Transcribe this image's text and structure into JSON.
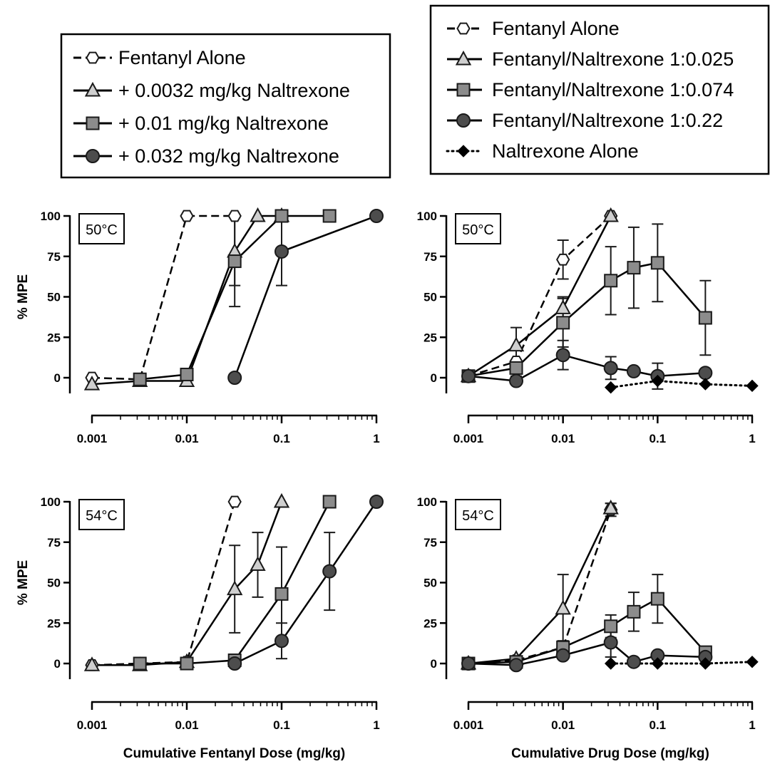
{
  "legends": [
    {
      "entries": [
        {
          "label": "Fentanyl Alone",
          "marker": "hexagon",
          "line": "dashed",
          "fill": "#ffffff"
        },
        {
          "label": "+ 0.0032 mg/kg Naltrexone",
          "marker": "triangle",
          "line": "solid",
          "fill": "#cfcfcf"
        },
        {
          "label": "+ 0.01 mg/kg Naltrexone",
          "marker": "square",
          "line": "solid",
          "fill": "#8c8c8c"
        },
        {
          "label": "+ 0.032 mg/kg Naltrexone",
          "marker": "circle",
          "line": "solid",
          "fill": "#4d4d4d"
        }
      ]
    },
    {
      "entries": [
        {
          "label": "Fentanyl Alone",
          "marker": "hexagon",
          "line": "dashed",
          "fill": "#ffffff"
        },
        {
          "label": "Fentanyl/Naltrexone 1:0.025",
          "marker": "triangle",
          "line": "solid",
          "fill": "#cfcfcf"
        },
        {
          "label": "Fentanyl/Naltrexone 1:0.074",
          "marker": "square",
          "line": "solid",
          "fill": "#8c8c8c"
        },
        {
          "label": "Fentanyl/Naltrexone 1:0.22",
          "marker": "circle",
          "line": "solid",
          "fill": "#4d4d4d"
        },
        {
          "label": "Naltrexone Alone",
          "marker": "diamond",
          "line": "dotted",
          "fill": "#000000"
        }
      ]
    }
  ],
  "chart_data": [
    {
      "type": "line",
      "panel": "top-left",
      "label": "50°C",
      "ylabel": "% MPE",
      "xlabel": "",
      "xscale": "log",
      "xlim": [
        0.001,
        1
      ],
      "ylim": [
        -10,
        100
      ],
      "yticks": [
        "0",
        "25",
        "50",
        "75",
        "100"
      ],
      "xticks": [
        "0.001",
        "0.01",
        "0.1",
        "1"
      ],
      "series": [
        {
          "name": "Fentanyl Alone",
          "marker": "hexagon",
          "line": "dashed",
          "fill": "#ffffff",
          "x": [
            0.001,
            0.0032,
            0.01,
            0.032
          ],
          "y": [
            0,
            -1,
            100,
            100
          ],
          "err": [
            0,
            0,
            0,
            0
          ]
        },
        {
          "name": "+ 0.0032 mg/kg Naltrexone",
          "marker": "triangle",
          "line": "solid",
          "fill": "#cfcfcf",
          "x": [
            0.001,
            0.0032,
            0.01,
            0.032,
            0.056,
            0.1
          ],
          "y": [
            -4,
            -2,
            -2,
            78,
            100,
            100
          ],
          "err": [
            0,
            0,
            0,
            21,
            0,
            0
          ]
        },
        {
          "name": "+ 0.01 mg/kg Naltrexone",
          "marker": "square",
          "line": "solid",
          "fill": "#8c8c8c",
          "x": [
            0.0032,
            0.01,
            0.032,
            0.1,
            0.32
          ],
          "y": [
            -1,
            2,
            72,
            100,
            100
          ],
          "err": [
            0,
            0,
            28,
            0,
            0
          ]
        },
        {
          "name": "+ 0.032 mg/kg Naltrexone",
          "marker": "circle",
          "line": "solid",
          "fill": "#4d4d4d",
          "x": [
            0.032,
            0.1,
            1
          ],
          "y": [
            0,
            78,
            100
          ],
          "err": [
            0,
            21,
            0
          ]
        }
      ]
    },
    {
      "type": "line",
      "panel": "top-right",
      "label": "50°C",
      "ylabel": "",
      "xlabel": "",
      "xscale": "log",
      "xlim": [
        0.001,
        1
      ],
      "ylim": [
        -10,
        100
      ],
      "yticks": [
        "0",
        "25",
        "50",
        "75",
        "100"
      ],
      "xticks": [
        "0.001",
        "0.01",
        "0.1",
        "1"
      ],
      "series": [
        {
          "name": "Fentanyl Alone",
          "marker": "hexagon",
          "line": "dashed",
          "fill": "#ffffff",
          "x": [
            0.001,
            0.0032,
            0.01,
            0.032
          ],
          "y": [
            1,
            10,
            73,
            100
          ],
          "err": [
            0,
            0,
            12,
            0
          ]
        },
        {
          "name": "Fentanyl/Naltrexone 1:0.025",
          "marker": "triangle",
          "line": "solid",
          "fill": "#cfcfcf",
          "x": [
            0.001,
            0.0032,
            0.01,
            0.032
          ],
          "y": [
            1,
            20,
            43,
            100
          ],
          "err": [
            0,
            11,
            7,
            0
          ]
        },
        {
          "name": "Fentanyl/Naltrexone 1:0.074",
          "marker": "square",
          "line": "solid",
          "fill": "#8c8c8c",
          "x": [
            0.001,
            0.0032,
            0.01,
            0.032,
            0.056,
            0.1,
            0.32
          ],
          "y": [
            1,
            6,
            34,
            60,
            68,
            71,
            37
          ],
          "err": [
            0,
            5,
            15,
            21,
            25,
            24,
            23
          ]
        },
        {
          "name": "Fentanyl/Naltrexone 1:0.22",
          "marker": "circle",
          "line": "solid",
          "fill": "#4d4d4d",
          "x": [
            0.001,
            0.0032,
            0.01,
            0.032,
            0.056,
            0.1,
            0.32
          ],
          "y": [
            1,
            -2,
            14,
            6,
            4,
            1,
            3
          ],
          "err": [
            0,
            0,
            9,
            7,
            0,
            8,
            0
          ]
        },
        {
          "name": "Naltrexone Alone",
          "marker": "diamond",
          "line": "dotted",
          "fill": "#000000",
          "x": [
            0.032,
            0.1,
            0.32,
            1
          ],
          "y": [
            -6,
            -2,
            -4,
            -5
          ],
          "err": [
            0,
            0,
            0,
            0
          ]
        }
      ]
    },
    {
      "type": "line",
      "panel": "bottom-left",
      "label": "54°C",
      "ylabel": "% MPE",
      "xlabel": "Cumulative Fentanyl Dose (mg/kg)",
      "xscale": "log",
      "xlim": [
        0.001,
        1
      ],
      "ylim": [
        -10,
        100
      ],
      "yticks": [
        "0",
        "25",
        "50",
        "75",
        "100"
      ],
      "xticks": [
        "0.001",
        "0.01",
        "0.1",
        "1"
      ],
      "series": [
        {
          "name": "Fentanyl Alone",
          "marker": "hexagon",
          "line": "dashed",
          "fill": "#ffffff",
          "x": [
            0.001,
            0.0032,
            0.01,
            0.032
          ],
          "y": [
            -1,
            0,
            1,
            100
          ],
          "err": [
            0,
            0,
            0,
            0
          ]
        },
        {
          "name": "+ 0.0032 mg/kg Naltrexone",
          "marker": "triangle",
          "line": "solid",
          "fill": "#cfcfcf",
          "x": [
            0.001,
            0.0032,
            0.01,
            0.032,
            0.056,
            0.1
          ],
          "y": [
            -1,
            -1,
            1,
            46,
            61,
            100
          ],
          "err": [
            0,
            0,
            0,
            27,
            20,
            0
          ]
        },
        {
          "name": "+ 0.01 mg/kg Naltrexone",
          "marker": "square",
          "line": "solid",
          "fill": "#8c8c8c",
          "x": [
            0.0032,
            0.01,
            0.032,
            0.1,
            0.32
          ],
          "y": [
            0,
            0,
            2,
            43,
            100
          ],
          "err": [
            0,
            0,
            0,
            29,
            0
          ]
        },
        {
          "name": "+ 0.032 mg/kg Naltrexone",
          "marker": "circle",
          "line": "solid",
          "fill": "#4d4d4d",
          "x": [
            0.032,
            0.1,
            0.32,
            1
          ],
          "y": [
            0,
            14,
            57,
            100
          ],
          "err": [
            0,
            11,
            24,
            0
          ]
        }
      ]
    },
    {
      "type": "line",
      "panel": "bottom-right",
      "label": "54°C",
      "ylabel": "",
      "xlabel": "Cumulative Drug Dose (mg/kg)",
      "xscale": "log",
      "xlim": [
        0.001,
        1
      ],
      "ylim": [
        -10,
        100
      ],
      "yticks": [
        "0",
        "25",
        "50",
        "75",
        "100"
      ],
      "xticks": [
        "0.001",
        "0.01",
        "0.1",
        "1"
      ],
      "series": [
        {
          "name": "Fentanyl Alone",
          "marker": "hexagon",
          "line": "dashed",
          "fill": "#ffffff",
          "x": [
            0.001,
            0.0032,
            0.01,
            0.032
          ],
          "y": [
            0,
            2,
            10,
            95
          ],
          "err": [
            0,
            0,
            4,
            4
          ]
        },
        {
          "name": "Fentanyl/Naltrexone 1:0.025",
          "marker": "triangle",
          "line": "solid",
          "fill": "#cfcfcf",
          "x": [
            0.001,
            0.0032,
            0.01,
            0.032
          ],
          "y": [
            0,
            3,
            34,
            96
          ],
          "err": [
            0,
            0,
            21,
            3
          ]
        },
        {
          "name": "Fentanyl/Naltrexone 1:0.074",
          "marker": "square",
          "line": "solid",
          "fill": "#8c8c8c",
          "x": [
            0.001,
            0.0032,
            0.01,
            0.032,
            0.056,
            0.1,
            0.32
          ],
          "y": [
            0,
            1,
            10,
            23,
            32,
            40,
            7
          ],
          "err": [
            0,
            0,
            4,
            7,
            12,
            15,
            0
          ]
        },
        {
          "name": "Fentanyl/Naltrexone 1:0.22",
          "marker": "circle",
          "line": "solid",
          "fill": "#4d4d4d",
          "x": [
            0.001,
            0.0032,
            0.01,
            0.032,
            0.056,
            0.1,
            0.32
          ],
          "y": [
            0,
            -1,
            5,
            13,
            1,
            5,
            4
          ],
          "err": [
            0,
            0,
            0,
            9,
            0,
            0,
            0
          ]
        },
        {
          "name": "Naltrexone Alone",
          "marker": "diamond",
          "line": "dotted",
          "fill": "#000000",
          "x": [
            0.032,
            0.1,
            0.32,
            1
          ],
          "y": [
            0,
            0,
            0,
            1
          ],
          "err": [
            0,
            0,
            0,
            0
          ]
        }
      ]
    }
  ]
}
